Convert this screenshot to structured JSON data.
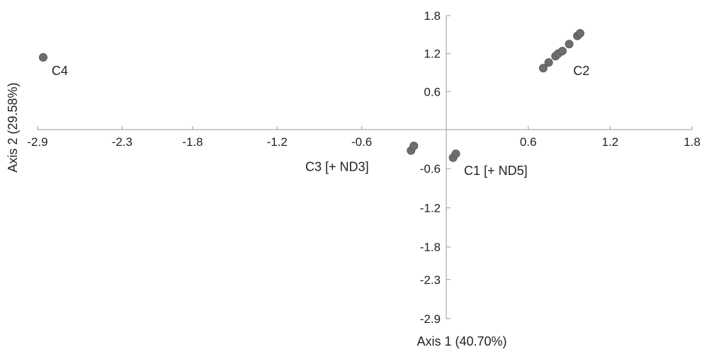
{
  "chart_data": {
    "type": "scatter",
    "xlabel": "Axis 1 (40.70%)",
    "ylabel": "Axis 2 (29.58%)",
    "xlim": [
      -2.9,
      1.8
    ],
    "ylim": [
      -2.9,
      1.8
    ],
    "x_ticks": [
      {
        "value": -2.9,
        "label": "-2.9"
      },
      {
        "value": -2.3,
        "label": "-2.3"
      },
      {
        "value": -1.8,
        "label": "-1.8"
      },
      {
        "value": -1.2,
        "label": "-1.2"
      },
      {
        "value": -0.6,
        "label": "-0.6"
      },
      {
        "value": 0.6,
        "label": "0.6"
      },
      {
        "value": 1.2,
        "label": "1.2"
      },
      {
        "value": 1.8,
        "label": "1.8"
      }
    ],
    "y_ticks": [
      {
        "value": 1.8,
        "label": "1.8"
      },
      {
        "value": 1.2,
        "label": "1.2"
      },
      {
        "value": 0.6,
        "label": "0.6"
      },
      {
        "value": -0.6,
        "label": "-0.6"
      },
      {
        "value": -1.2,
        "label": "-1.2"
      },
      {
        "value": -1.8,
        "label": "-1.8"
      },
      {
        "value": -2.3,
        "label": "-2.3"
      },
      {
        "value": -2.9,
        "label": "-2.9"
      }
    ],
    "points": [
      {
        "x": -2.86,
        "y": 1.14,
        "group": "C4"
      },
      {
        "x": 0.71,
        "y": 0.97,
        "group": "C2"
      },
      {
        "x": 0.75,
        "y": 1.06,
        "group": "C2"
      },
      {
        "x": 0.8,
        "y": 1.16,
        "group": "C2"
      },
      {
        "x": 0.82,
        "y": 1.2,
        "group": "C2"
      },
      {
        "x": 0.85,
        "y": 1.24,
        "group": "C2"
      },
      {
        "x": 0.9,
        "y": 1.35,
        "group": "C2"
      },
      {
        "x": 0.96,
        "y": 1.48,
        "group": "C2"
      },
      {
        "x": 0.98,
        "y": 1.52,
        "group": "C2"
      },
      {
        "x": -0.25,
        "y": -0.32,
        "group": "C3 [+ ND3]"
      },
      {
        "x": -0.23,
        "y": -0.25,
        "group": "C3 [+ ND3]"
      },
      {
        "x": 0.05,
        "y": -0.43,
        "group": "C1 [+ ND5]"
      },
      {
        "x": 0.07,
        "y": -0.37,
        "group": "C1 [+ ND5]"
      }
    ],
    "point_labels": [
      {
        "text": "C4",
        "x": -2.8,
        "y": 0.93
      },
      {
        "text": "C2",
        "x": 0.93,
        "y": 0.93
      },
      {
        "text": "C3 [+ ND3]",
        "x": -1.0,
        "y": -0.57
      },
      {
        "text": "C1 [+ ND5]",
        "x": 0.13,
        "y": -0.63
      }
    ],
    "grid": false,
    "point_color": "#6e6e6e",
    "axis_color": "#9a9a9a"
  }
}
